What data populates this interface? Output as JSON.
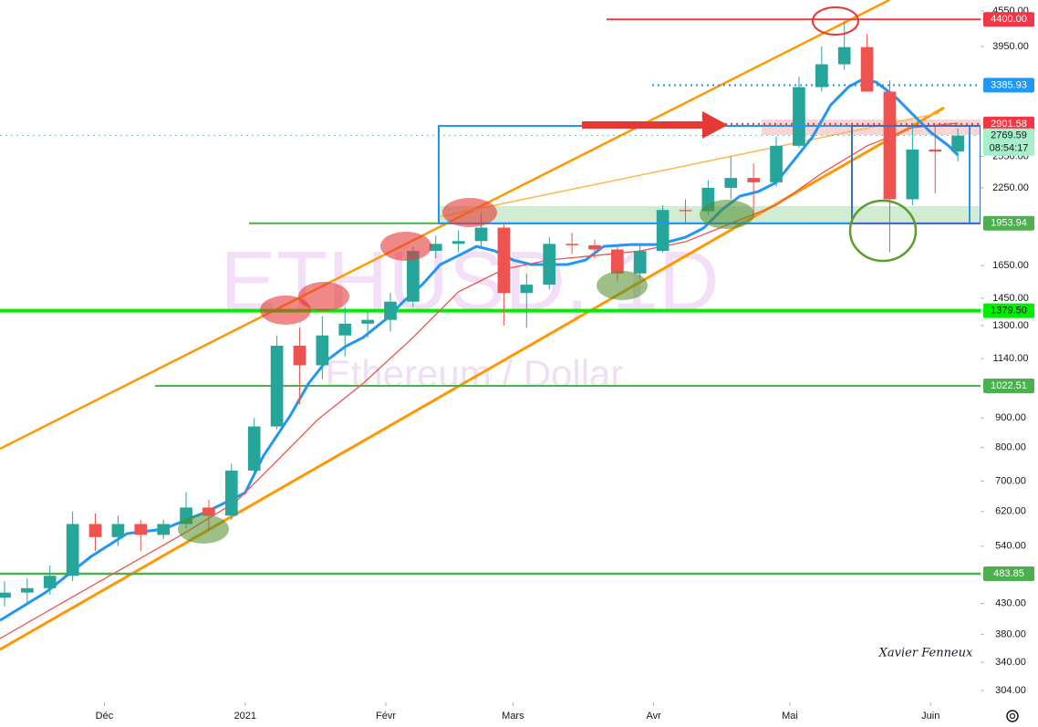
{
  "chart_data": {
    "type": "candlestick",
    "symbol": "ETHUSD, 1D",
    "description": "Ethereum / Dollar",
    "signature": "Xavier Fenneux",
    "log_scale": true,
    "grid": false,
    "up_color": "#26a69a",
    "down_color": "#ef5350",
    "xlim": [
      0,
      216
    ],
    "ylim": [
      290,
      4753
    ],
    "xticks": [
      {
        "value": 23,
        "label": "Déc"
      },
      {
        "value": 54,
        "label": "2021"
      },
      {
        "value": 85,
        "label": "Févr"
      },
      {
        "value": 113,
        "label": "Mars"
      },
      {
        "value": 144,
        "label": "Avr"
      },
      {
        "value": 174,
        "label": "Mai"
      },
      {
        "value": 205,
        "label": "Juin"
      }
    ],
    "yticks": [
      {
        "value": 4550,
        "label": "4550.00"
      },
      {
        "value": 3950,
        "label": "3950.00"
      },
      {
        "value": 2550,
        "label": "2550.00"
      },
      {
        "value": 2250,
        "label": "2250.00"
      },
      {
        "value": 1650,
        "label": "1650.00"
      },
      {
        "value": 1450,
        "label": "1450.00"
      },
      {
        "value": 1300,
        "label": "1300.00"
      },
      {
        "value": 1140,
        "label": "1140.00"
      },
      {
        "value": 900,
        "label": "900.00"
      },
      {
        "value": 800,
        "label": "800.00"
      },
      {
        "value": 700,
        "label": "700.00"
      },
      {
        "value": 620,
        "label": "620.00"
      },
      {
        "value": 540,
        "label": "540.00"
      },
      {
        "value": 430,
        "label": "430.00"
      },
      {
        "value": 380,
        "label": "380.00"
      },
      {
        "value": 340,
        "label": "340.00"
      },
      {
        "value": 304,
        "label": "304.00"
      }
    ],
    "candles": {
      "x": [
        1,
        6,
        11,
        16,
        21,
        26,
        31,
        36,
        41,
        46,
        51,
        56,
        61,
        66,
        71,
        76,
        81,
        86,
        91,
        96,
        101,
        106,
        111,
        116,
        121,
        126,
        131,
        136,
        141,
        146,
        151,
        156,
        161,
        166,
        171,
        176,
        181,
        186,
        191,
        196,
        201,
        206,
        211
      ],
      "open": [
        440,
        449,
        457,
        480,
        590,
        560,
        590,
        565,
        590,
        630,
        610,
        730,
        870,
        1200,
        1110,
        1250,
        1310,
        1330,
        1430,
        1750,
        1800,
        1820,
        1920,
        1480,
        1530,
        1800,
        1790,
        1760,
        1600,
        1750,
        2060,
        2050,
        2250,
        2340,
        2300,
        2660,
        3360,
        3680,
        3940,
        3300,
        2150,
        2620,
        2600
      ],
      "high": [
        470,
        475,
        500,
        620,
        615,
        610,
        600,
        600,
        670,
        650,
        750,
        900,
        1250,
        1290,
        1350,
        1400,
        1380,
        1480,
        1780,
        1860,
        1900,
        2040,
        1960,
        1600,
        1850,
        1880,
        1830,
        1780,
        1790,
        2100,
        2150,
        2320,
        2550,
        2480,
        2760,
        3500,
        3950,
        4370,
        4150,
        3450,
        2900,
        2890,
        2850
      ],
      "low": [
        425,
        430,
        445,
        470,
        530,
        540,
        530,
        555,
        580,
        575,
        600,
        720,
        860,
        950,
        1050,
        1150,
        1240,
        1270,
        1400,
        1700,
        1740,
        1780,
        1300,
        1290,
        1500,
        1730,
        1700,
        1550,
        1560,
        1740,
        1960,
        2020,
        2150,
        2000,
        2260,
        2640,
        3300,
        3600,
        3300,
        1740,
        2100,
        2200,
        2500
      ],
      "close": [
        449,
        457,
        480,
        590,
        560,
        590,
        565,
        590,
        630,
        610,
        730,
        870,
        1200,
        1110,
        1250,
        1310,
        1330,
        1430,
        1750,
        1800,
        1820,
        1920,
        1480,
        1530,
        1800,
        1790,
        1760,
        1600,
        1750,
        2060,
        2050,
        2250,
        2340,
        2300,
        2660,
        3360,
        3680,
        3940,
        3300,
        2150,
        2620,
        2600,
        2770
      ]
    },
    "moving_averages": [
      {
        "color": "#2196f3",
        "x": [
          0,
          10,
          20,
          28,
          36,
          46,
          54,
          58,
          64,
          68,
          72,
          76,
          80,
          85,
          89,
          93,
          97,
          101,
          105,
          109,
          113,
          117,
          125,
          129,
          133,
          139,
          145,
          151,
          155,
          159,
          163,
          167,
          171,
          175,
          179,
          183,
          187,
          190,
          193,
          197,
          201,
          205,
          209,
          211
        ],
        "values": [
          402,
          449,
          518,
          568,
          578,
          622,
          668,
          773,
          910,
          1033,
          1132,
          1195,
          1240,
          1333,
          1434,
          1530,
          1658,
          1718,
          1782,
          1750,
          1688,
          1658,
          1658,
          1688,
          1782,
          1795,
          1795,
          1848,
          1917,
          2061,
          2177,
          2216,
          2298,
          2517,
          2756,
          3130,
          3366,
          3465,
          3427,
          3246,
          3018,
          2807,
          2659,
          2563
        ]
      },
      {
        "color": "#ef5350",
        "x": [
          0,
          20,
          40,
          52,
          60,
          70,
          80,
          91,
          101,
          111,
          121,
          131,
          141,
          151,
          161,
          171,
          181,
          191,
          201,
          211
        ],
        "values": [
          374,
          460,
          565,
          645,
          745,
          894,
          1033,
          1240,
          1487,
          1627,
          1688,
          1718,
          1750,
          1815,
          1952,
          2099,
          2383,
          2659,
          2859,
          2911
        ]
      }
    ],
    "levels": [
      {
        "value": 4400,
        "label": "4400.00",
        "color": "#f23645",
        "style": "solid"
      },
      {
        "value": 3385.93,
        "label": "3385.93",
        "color": "#2196f3",
        "style": "dotted"
      },
      {
        "value": 2901.58,
        "label": "2901.58",
        "color": "#f23645",
        "style": "dotted"
      },
      {
        "value": 2769.59,
        "label": "2769.59",
        "color": "#26a69a",
        "style": "dotted"
      },
      {
        "value": 1953.94,
        "label": "1953.94",
        "color": "#4caf50",
        "style": "solid"
      },
      {
        "value": 1379.5,
        "label": "1379.50",
        "color": "#00ee00",
        "style": "solid"
      },
      {
        "value": 1022.51,
        "label": "1022.51",
        "color": "#4caf50",
        "style": "solid"
      },
      {
        "value": 483.85,
        "label": "483.85",
        "color": "#4caf50",
        "style": "solid"
      }
    ],
    "countdown": "08:54:17"
  }
}
